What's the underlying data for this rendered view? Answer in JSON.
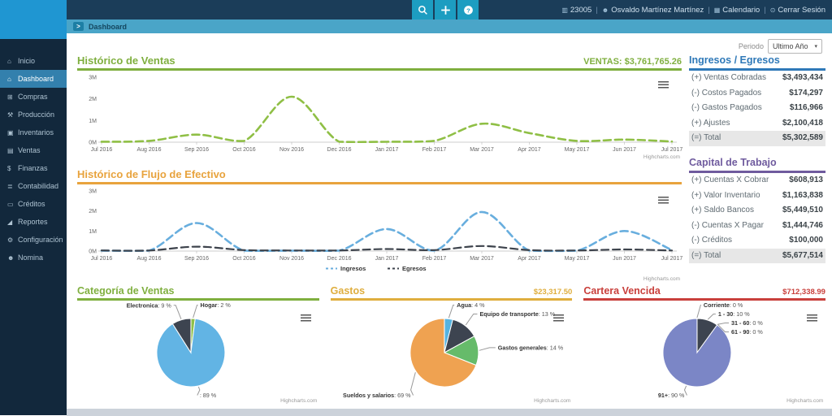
{
  "topbar": {
    "buttons": [
      {
        "id": "search",
        "icon": "search-icon"
      },
      {
        "id": "add",
        "icon": "plus-icon"
      },
      {
        "id": "help",
        "icon": "help-icon"
      }
    ],
    "user_items": [
      {
        "id": "company",
        "icon": "device-icon",
        "glyph": "▥",
        "label": "23005"
      },
      {
        "id": "user",
        "icon": "user-icon",
        "glyph": "☻",
        "label": "Osvaldo Martínez Martínez"
      },
      {
        "id": "calendar",
        "icon": "calendar-icon",
        "glyph": "▦",
        "label": "Calendario"
      },
      {
        "id": "logout",
        "icon": "power-icon",
        "glyph": "⊙",
        "label": "Cerrar Sesión"
      }
    ],
    "separator": "|"
  },
  "breadcrumb": {
    "label": "Dashboard"
  },
  "sidebar": {
    "items": [
      {
        "id": "inicio",
        "label": "Inicio",
        "icon": "home-icon",
        "glyph": "⌂",
        "active": false
      },
      {
        "id": "dashboard",
        "label": "Dashboard",
        "icon": "dashboard-icon",
        "glyph": "⌂",
        "active": true
      },
      {
        "id": "compras",
        "label": "Compras",
        "icon": "cart-icon",
        "glyph": "⊞",
        "active": false
      },
      {
        "id": "produccion",
        "label": "Producción",
        "icon": "production-icon",
        "glyph": "⚒",
        "active": false
      },
      {
        "id": "inventarios",
        "label": "Inventarios",
        "icon": "inventory-icon",
        "glyph": "▣",
        "active": false
      },
      {
        "id": "ventas",
        "label": "Ventas",
        "icon": "sales-icon",
        "glyph": "▤",
        "active": false
      },
      {
        "id": "finanzas",
        "label": "Finanzas",
        "icon": "finance-icon",
        "glyph": "$",
        "active": false
      },
      {
        "id": "contabilidad",
        "label": "Contabilidad",
        "icon": "accounting-icon",
        "glyph": "≣",
        "active": false
      },
      {
        "id": "creditos",
        "label": "Créditos",
        "icon": "credit-card-icon",
        "glyph": "▭",
        "active": false
      },
      {
        "id": "reportes",
        "label": "Reportes",
        "icon": "reports-icon",
        "glyph": "◢",
        "active": false
      },
      {
        "id": "configuracion",
        "label": "Configuración",
        "icon": "gears-icon",
        "glyph": "⚙",
        "active": false
      },
      {
        "id": "nomina",
        "label": "Nomina",
        "icon": "users-icon",
        "glyph": "☻",
        "active": false
      }
    ]
  },
  "period": {
    "label": "Periodo",
    "value": "Ultimo Año"
  },
  "panels": {
    "ingresos_egresos": {
      "title": "Ingresos / Egresos",
      "accent": "#2f79b8",
      "rows": [
        [
          "(+) Ventas Cobradas",
          "$3,493,434"
        ],
        [
          "(-) Costos Pagados",
          "$174,297"
        ],
        [
          "(-) Gastos Pagados",
          "$116,966"
        ],
        [
          "(+) Ajustes",
          "$2,100,418"
        ]
      ],
      "total": [
        "(=) Total",
        "$5,302,589"
      ]
    },
    "capital_trabajo": {
      "title": "Capital de Trabajo",
      "accent": "#6f5b9e",
      "rows": [
        [
          "(+) Cuentas X Cobrar",
          "$608,913"
        ],
        [
          "(+) Valor Inventario",
          "$1,163,838"
        ],
        [
          "(+) Saldo Bancos",
          "$5,449,510"
        ],
        [
          "(-) Cuentas X Pagar",
          "$1,444,746"
        ],
        [
          "(-) Créditos",
          "$100,000"
        ]
      ],
      "total": [
        "(=) Total",
        "$5,677,514"
      ]
    }
  },
  "chart_data": [
    {
      "id": "historico-ventas",
      "type": "line",
      "title": "Histórico de Ventas",
      "accent": "#7faf3f",
      "header_value_label": "VENTAS:",
      "header_value": "$3,761,765.26",
      "categories": [
        "Jul 2016",
        "Aug 2016",
        "Sep 2016",
        "Oct 2016",
        "Nov 2016",
        "Dec 2016",
        "Jan 2017",
        "Feb 2017",
        "Mar 2017",
        "Apr 2017",
        "May 2017",
        "Jun 2017",
        "Jul 2017"
      ],
      "yticks": [
        "0M",
        "1M",
        "2M",
        "3M"
      ],
      "ylim": [
        0,
        3
      ],
      "grid": false,
      "series": [
        {
          "name": "Ventas",
          "color": "#8fbf45",
          "dash": "9,5",
          "width": 2.6,
          "values": [
            0.02,
            0.06,
            0.35,
            0.06,
            2.1,
            0.02,
            0.02,
            0.06,
            0.85,
            0.42,
            0.06,
            0.12,
            0.03
          ]
        }
      ],
      "credit": "Highcharts.com"
    },
    {
      "id": "historico-flujo",
      "type": "line",
      "title": "Histórico de Flujo de Efectivo",
      "accent": "#e8a33d",
      "categories": [
        "Jul 2016",
        "Aug 2016",
        "Sep 2016",
        "Oct 2016",
        "Nov 2016",
        "Dec 2016",
        "Jan 2017",
        "Feb 2017",
        "Mar 2017",
        "Apr 2017",
        "May 2017",
        "Jun 2017",
        "Jul 2017"
      ],
      "yticks": [
        "0M",
        "1M",
        "2M",
        "3M"
      ],
      "ylim": [
        0,
        3
      ],
      "grid": false,
      "legend_position": "bottom",
      "series": [
        {
          "name": "Ingresos",
          "color": "#68aede",
          "dash": "9,5",
          "width": 2.6,
          "values": [
            0.02,
            0.02,
            1.4,
            0.02,
            0.02,
            0.02,
            1.1,
            0.02,
            1.95,
            0.02,
            0.02,
            1.0,
            0.05
          ]
        },
        {
          "name": "Egresos",
          "color": "#3d434c",
          "dash": "9,5",
          "width": 2.2,
          "values": [
            0.03,
            0.03,
            0.22,
            0.05,
            0.03,
            0.03,
            0.1,
            0.05,
            0.25,
            0.05,
            0.03,
            0.08,
            0.03
          ]
        }
      ],
      "credit": "Highcharts.com"
    },
    {
      "id": "categoria-ventas",
      "type": "pie",
      "title": "Categoría de Ventas",
      "accent": "#7faf3f",
      "slices": [
        {
          "name": "Hogar",
          "pct": 2,
          "color": "#8fc04a"
        },
        {
          "name": "",
          "pct": 89,
          "color": "#62b4e4"
        },
        {
          "name": "Electronica",
          "pct": 9,
          "color": "#3d4450"
        }
      ],
      "credit": "Highcharts.com"
    },
    {
      "id": "gastos",
      "type": "pie",
      "title": "Gastos",
      "accent": "#dfae3e",
      "header_value": "$23,317.50",
      "slices": [
        {
          "name": "Agua",
          "pct": 4,
          "color": "#56b3e0"
        },
        {
          "name": "Equipo de transporte",
          "pct": 13,
          "color": "#3d4450"
        },
        {
          "name": "Gastos generales",
          "pct": 14,
          "color": "#66bb6a"
        },
        {
          "name": "Sueldos y salarios",
          "pct": 69,
          "color": "#efa251"
        }
      ],
      "credit": "Highcharts.com"
    },
    {
      "id": "cartera-vencida",
      "type": "pie",
      "title": "Cartera Vencida",
      "accent": "#c9403c",
      "header_value": "$712,338.99",
      "slices": [
        {
          "name": "Corriente",
          "pct": 0,
          "color": "#56b3e0"
        },
        {
          "name": "1 - 30",
          "pct": 10,
          "color": "#3d4450"
        },
        {
          "name": "31 - 60",
          "pct": 0,
          "color": "#66bb6a"
        },
        {
          "name": "61 - 90",
          "pct": 0,
          "color": "#efa251"
        },
        {
          "name": "91+",
          "pct": 90,
          "color": "#7b86c6"
        }
      ],
      "credit": "Highcharts.com"
    }
  ]
}
